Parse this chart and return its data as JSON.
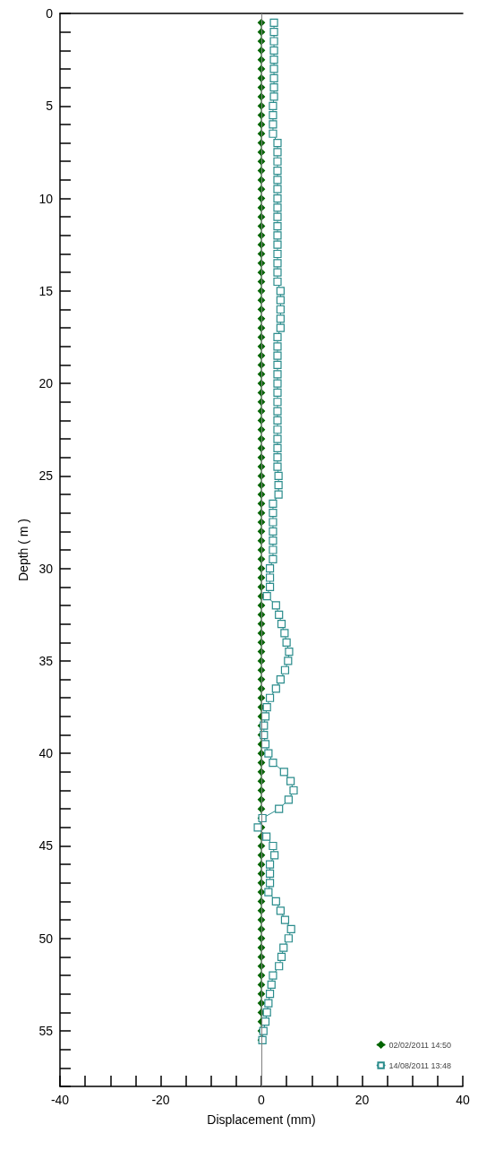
{
  "chart_data": {
    "type": "line",
    "xlabel": "Displacement (mm)",
    "ylabel": "Depth ( m )",
    "xlim": [
      -40,
      40
    ],
    "xticks": [
      -40,
      {
        "value": -35,
        "label": null
      },
      {
        "value": -30,
        "label": null
      },
      {
        "value": -25,
        "label": null
      },
      -20,
      {
        "value": -15,
        "label": null
      },
      {
        "value": -10,
        "label": null
      },
      {
        "value": -5,
        "label": null
      },
      0,
      {
        "value": 5,
        "label": null
      },
      {
        "value": 10,
        "label": null
      },
      {
        "value": 15,
        "label": null
      },
      20,
      {
        "value": 25,
        "label": null
      },
      {
        "value": 30,
        "label": null
      },
      {
        "value": 35,
        "label": null
      },
      40
    ],
    "ylim": [
      58,
      0
    ],
    "yticks": [
      0,
      5,
      10,
      15,
      20,
      25,
      30,
      35,
      40,
      45,
      50,
      55,
      {
        "value": 1,
        "label": null
      },
      {
        "value": 2,
        "label": null
      },
      {
        "value": 3,
        "label": null
      },
      {
        "value": 4,
        "label": null
      },
      {
        "value": 6,
        "label": null
      },
      {
        "value": 7,
        "label": null
      },
      {
        "value": 8,
        "label": null
      },
      {
        "value": 9,
        "label": null
      },
      {
        "value": 11,
        "label": null
      },
      {
        "value": 12,
        "label": null
      },
      {
        "value": 13,
        "label": null
      },
      {
        "value": 14,
        "label": null
      },
      {
        "value": 16,
        "label": null
      },
      {
        "value": 17,
        "label": null
      },
      {
        "value": 18,
        "label": null
      },
      {
        "value": 19,
        "label": null
      },
      {
        "value": 21,
        "label": null
      },
      {
        "value": 22,
        "label": null
      },
      {
        "value": 23,
        "label": null
      },
      {
        "value": 24,
        "label": null
      },
      {
        "value": 26,
        "label": null
      },
      {
        "value": 27,
        "label": null
      },
      {
        "value": 28,
        "label": null
      },
      {
        "value": 29,
        "label": null
      },
      {
        "value": 31,
        "label": null
      },
      {
        "value": 32,
        "label": null
      },
      {
        "value": 33,
        "label": null
      },
      {
        "value": 34,
        "label": null
      },
      {
        "value": 36,
        "label": null
      },
      {
        "value": 37,
        "label": null
      },
      {
        "value": 38,
        "label": null
      },
      {
        "value": 39,
        "label": null
      },
      {
        "value": 41,
        "label": null
      },
      {
        "value": 42,
        "label": null
      },
      {
        "value": 43,
        "label": null
      },
      {
        "value": 44,
        "label": null
      },
      {
        "value": 46,
        "label": null
      },
      {
        "value": 47,
        "label": null
      },
      {
        "value": 48,
        "label": null
      },
      {
        "value": 49,
        "label": null
      },
      {
        "value": 51,
        "label": null
      },
      {
        "value": 52,
        "label": null
      },
      {
        "value": 53,
        "label": null
      },
      {
        "value": 54,
        "label": null
      },
      {
        "value": 56,
        "label": null
      },
      {
        "value": 57,
        "label": null
      },
      {
        "value": 58,
        "label": null
      }
    ],
    "grid": false,
    "legend": "bottom right",
    "line_style": "solid",
    "ref_lines": [
      {
        "axis": "x",
        "value": 0,
        "color": "#808080"
      }
    ],
    "series": [
      {
        "name": "02/02/2011 14:50",
        "color": "#006400",
        "marker": "diamond",
        "x": [
          0,
          0,
          0,
          0,
          0,
          0,
          0,
          0,
          0,
          0,
          0,
          0,
          0,
          0,
          0,
          0,
          0,
          0,
          0,
          0,
          0,
          0,
          0,
          0,
          0,
          0,
          0,
          0,
          0,
          0,
          0,
          0,
          0,
          0,
          0,
          0,
          0,
          0,
          0,
          0,
          0,
          0,
          0,
          0,
          0,
          0,
          0,
          0,
          0,
          0,
          0,
          0,
          0,
          0,
          0,
          0,
          0,
          0,
          0,
          0,
          0,
          0,
          0,
          0,
          0,
          0,
          0,
          0,
          0,
          0,
          0,
          0,
          0,
          0,
          0,
          0,
          0,
          0,
          0,
          0,
          0,
          0,
          0,
          0,
          0,
          0,
          0,
          0,
          0,
          0,
          0,
          0,
          0,
          0,
          0,
          0,
          0,
          0,
          0,
          0,
          0,
          0,
          0,
          0,
          0,
          0,
          0,
          0,
          0,
          0,
          0
        ],
        "values": [
          0.5,
          1,
          1.5,
          2,
          2.5,
          3,
          3.5,
          4,
          4.5,
          5,
          5.5,
          6,
          6.5,
          7,
          7.5,
          8,
          8.5,
          9,
          9.5,
          10,
          10.5,
          11,
          11.5,
          12,
          12.5,
          13,
          13.5,
          14,
          14.5,
          15,
          15.5,
          16,
          16.5,
          17,
          17.5,
          18,
          18.5,
          19,
          19.5,
          20,
          20.5,
          21,
          21.5,
          22,
          22.5,
          23,
          23.5,
          24,
          24.5,
          25,
          25.5,
          26,
          26.5,
          27,
          27.5,
          28,
          28.5,
          29,
          29.5,
          30,
          30.5,
          31,
          31.5,
          32,
          32.5,
          33,
          33.5,
          34,
          34.5,
          35,
          35.5,
          36,
          36.5,
          37,
          37.5,
          38,
          38.5,
          39,
          39.5,
          40,
          40.5,
          41,
          41.5,
          42,
          42.5,
          43,
          43.5,
          44,
          44.5,
          45,
          45.5,
          46,
          46.5,
          47,
          47.5,
          48,
          48.5,
          49,
          49.5,
          50,
          50.5,
          51,
          51.5,
          52,
          52.5,
          53,
          53.5,
          54,
          54.5,
          55,
          55.5
        ]
      },
      {
        "name": "14/08/2011 13:48",
        "color": "#2a8c8c",
        "marker": "square",
        "x": [
          2.5,
          2.5,
          2.5,
          2.5,
          2.5,
          2.5,
          2.5,
          2.5,
          2.5,
          2.3,
          2.3,
          2.3,
          2.3,
          3.2,
          3.2,
          3.2,
          3.2,
          3.2,
          3.2,
          3.2,
          3.2,
          3.2,
          3.2,
          3.2,
          3.2,
          3.2,
          3.2,
          3.2,
          3.2,
          3.8,
          3.8,
          3.8,
          3.8,
          3.8,
          3.2,
          3.2,
          3.2,
          3.2,
          3.2,
          3.2,
          3.2,
          3.2,
          3.2,
          3.2,
          3.2,
          3.2,
          3.2,
          3.2,
          3.2,
          3.4,
          3.4,
          3.4,
          2.3,
          2.3,
          2.3,
          2.3,
          2.3,
          2.3,
          2.3,
          1.7,
          1.7,
          1.7,
          1.1,
          2.9,
          3.5,
          4.0,
          4.6,
          5.0,
          5.5,
          5.3,
          4.7,
          3.8,
          2.9,
          1.7,
          1.1,
          0.8,
          0.5,
          0.5,
          0.8,
          1.4,
          2.3,
          4.5,
          5.8,
          6.4,
          5.4,
          3.5,
          0.2,
          -0.7,
          1.0,
          2.3,
          2.6,
          1.7,
          1.7,
          1.7,
          1.4,
          2.9,
          3.8,
          4.7,
          5.9,
          5.4,
          4.4,
          4.0,
          3.5,
          2.3,
          2.0,
          1.7,
          1.4,
          1.1,
          0.8,
          0.4,
          0.2
        ],
        "values": [
          0.5,
          1,
          1.5,
          2,
          2.5,
          3,
          3.5,
          4,
          4.5,
          5,
          5.5,
          6,
          6.5,
          7,
          7.5,
          8,
          8.5,
          9,
          9.5,
          10,
          10.5,
          11,
          11.5,
          12,
          12.5,
          13,
          13.5,
          14,
          14.5,
          15,
          15.5,
          16,
          16.5,
          17,
          17.5,
          18,
          18.5,
          19,
          19.5,
          20,
          20.5,
          21,
          21.5,
          22,
          22.5,
          23,
          23.5,
          24,
          24.5,
          25,
          25.5,
          26,
          26.5,
          27,
          27.5,
          28,
          28.5,
          29,
          29.5,
          30,
          30.5,
          31,
          31.5,
          32,
          32.5,
          33,
          33.5,
          34,
          34.5,
          35,
          35.5,
          36,
          36.5,
          37,
          37.5,
          38,
          38.5,
          39,
          39.5,
          40,
          40.5,
          41,
          41.5,
          42,
          42.5,
          43,
          43.5,
          44,
          44.5,
          45,
          45.5,
          46,
          46.5,
          47,
          47.5,
          48,
          48.5,
          49,
          49.5,
          50,
          50.5,
          51,
          51.5,
          52,
          52.5,
          53,
          53.5,
          54,
          54.5,
          55,
          55.5
        ]
      }
    ]
  }
}
